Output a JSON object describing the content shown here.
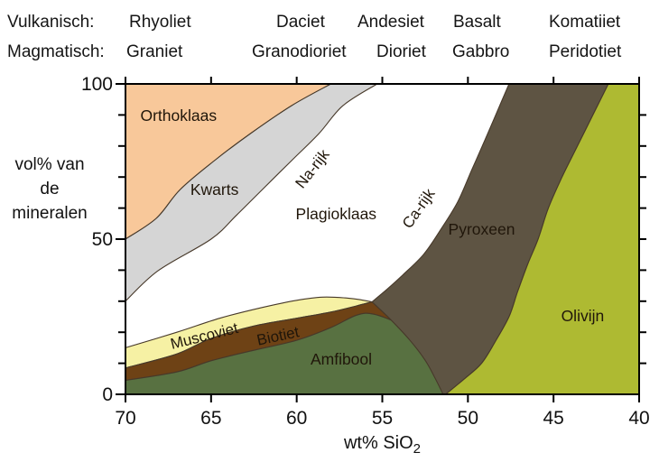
{
  "header": {
    "row1_label": "Vulkanisch:",
    "row1_items": [
      "Rhyoliet",
      "Daciet",
      "Andesiet",
      "Basalt",
      "Komatiiet"
    ],
    "row2_label": "Magmatisch:",
    "row2_items": [
      "Graniet",
      "Granodioriet",
      "Dioriet",
      "Gabbro",
      "Peridotiet"
    ]
  },
  "chart_data": {
    "type": "area",
    "title": "",
    "xlabel": "wt% SiO2",
    "xlabel_main": "wt% SiO",
    "xlabel_sub": "2",
    "ylabel_lines": [
      "vol% van",
      "de",
      "mineralen"
    ],
    "x_axis_reversed": true,
    "x_range": [
      70,
      40
    ],
    "y_range": [
      0,
      100
    ],
    "x_ticks": [
      70,
      65,
      60,
      55,
      50,
      45,
      40
    ],
    "x_tick_labels": [
      "70",
      "65",
      "60",
      "55",
      "50",
      "45",
      "40"
    ],
    "y_major_ticks": [
      100,
      50,
      0
    ],
    "y_tick_labels": [
      "100",
      "50",
      "0"
    ],
    "y_minor_step": 10,
    "boundary_color": "#47392a",
    "axis_color": "#000000",
    "label_color": "#20160a",
    "regions": [
      {
        "name": "Orthoklaas",
        "color": "#f8c89a",
        "segments": [
          {
            "smooth": true,
            "pts": [
              [
                70,
                50
              ],
              [
                68.2,
                56.7
              ],
              [
                66.8,
                66
              ],
              [
                64.8,
                75.3
              ],
              [
                62.7,
                84
              ],
              [
                60.3,
                93
              ],
              [
                58,
                100
              ]
            ]
          },
          {
            "smooth": false,
            "pts": [
              [
                70,
                100
              ]
            ]
          }
        ]
      },
      {
        "name": "Kwarts",
        "color": "#d5d5d5",
        "segments": [
          {
            "smooth": true,
            "pts": [
              [
                70,
                30
              ],
              [
                68.1,
                39.8
              ],
              [
                65,
                50
              ],
              [
                63.5,
                57.8
              ],
              [
                62,
                66
              ],
              [
                60.3,
                75.3
              ],
              [
                58.7,
                84
              ],
              [
                57.3,
                93
              ],
              [
                55.3,
                100
              ]
            ]
          },
          {
            "smooth": false,
            "pts": [
              [
                58,
                100
              ]
            ]
          },
          {
            "smooth": true,
            "pts": [
              [
                60.3,
                93
              ],
              [
                62.7,
                84
              ],
              [
                64.8,
                75.3
              ],
              [
                66.8,
                66
              ],
              [
                68.2,
                56.7
              ],
              [
                70,
                50
              ]
            ]
          }
        ]
      },
      {
        "name": "Muscoviet",
        "color": "#f6f1a4",
        "segments": [
          {
            "smooth": true,
            "pts": [
              [
                70,
                15
              ],
              [
                67,
                20
              ],
              [
                64.5,
                24.5
              ],
              [
                62,
                28
              ],
              [
                60,
                30.3
              ],
              [
                58.5,
                31.3
              ],
              [
                57,
                31
              ],
              [
                56.2,
                30.4
              ],
              [
                55.6,
                29.8
              ]
            ]
          },
          {
            "smooth": true,
            "pts": [
              [
                56.5,
                28.5
              ],
              [
                58,
                26.5
              ],
              [
                60,
                24.5
              ],
              [
                62.5,
                22
              ],
              [
                65,
                18
              ],
              [
                67,
                13
              ],
              [
                70,
                8.5
              ]
            ]
          }
        ]
      },
      {
        "name": "Biotiet",
        "color": "#6e4215",
        "segments": [
          {
            "smooth": true,
            "pts": [
              [
                70,
                8.5
              ],
              [
                67,
                13
              ],
              [
                65,
                18
              ],
              [
                62.5,
                22
              ],
              [
                60,
                24.5
              ],
              [
                58,
                26.5
              ],
              [
                56.5,
                28.5
              ],
              [
                55.6,
                29.8
              ]
            ]
          },
          {
            "smooth": true,
            "pts": [
              [
                54.5,
                24
              ],
              [
                53.4,
                17.5
              ],
              [
                52.5,
                11
              ],
              [
                51.9,
                5
              ],
              [
                51.45,
                0
              ]
            ]
          },
          {
            "smooth": true,
            "pts": [
              [
                51.7,
                4.5
              ],
              [
                52.3,
                11
              ],
              [
                53,
                17.5
              ],
              [
                54,
                22.5
              ],
              [
                55.5,
                25.8
              ],
              [
                56.5,
                25.5
              ],
              [
                58,
                21.5
              ],
              [
                60,
                17.4
              ],
              [
                62.5,
                14.2
              ],
              [
                65,
                10.8
              ],
              [
                67,
                7.2
              ],
              [
                70,
                4.5
              ]
            ]
          }
        ]
      },
      {
        "name": "Amfibool",
        "color": "#587141",
        "segments": [
          {
            "smooth": true,
            "pts": [
              [
                70,
                4.5
              ],
              [
                67,
                7.2
              ],
              [
                65,
                10.8
              ],
              [
                62.5,
                14.2
              ],
              [
                60,
                17.4
              ],
              [
                58,
                21.5
              ],
              [
                56.5,
                25.5
              ],
              [
                55.5,
                25.8
              ],
              [
                54,
                22.5
              ],
              [
                53,
                17.5
              ],
              [
                52.3,
                11
              ],
              [
                51.7,
                4.5
              ],
              [
                51.4,
                0
              ]
            ]
          },
          {
            "smooth": false,
            "pts": [
              [
                70,
                0
              ]
            ]
          }
        ]
      },
      {
        "name": "Pyroxeen",
        "color": "#5e5443",
        "segments": [
          {
            "smooth": true,
            "pts": [
              [
                47.6,
                100
              ],
              [
                48.3,
                91
              ],
              [
                49,
                82
              ],
              [
                49.8,
                72
              ],
              [
                50.6,
                62
              ],
              [
                51.6,
                53
              ],
              [
                52.6,
                45
              ],
              [
                53.8,
                38.5
              ],
              [
                54.8,
                33.5
              ],
              [
                55.6,
                29.8
              ]
            ]
          },
          {
            "smooth": true,
            "pts": [
              [
                54.5,
                24
              ],
              [
                53.4,
                17.5
              ],
              [
                52.5,
                11
              ],
              [
                51.9,
                5
              ],
              [
                51.45,
                0
              ]
            ]
          },
          {
            "smooth": false,
            "pts": [
              [
                51.3,
                0
              ]
            ]
          },
          {
            "smooth": true,
            "pts": [
              [
                50.2,
                5
              ],
              [
                49.2,
                10
              ],
              [
                48.4,
                17
              ],
              [
                47.6,
                25
              ],
              [
                47.1,
                33
              ],
              [
                46.5,
                42
              ],
              [
                45.9,
                50
              ],
              [
                45.3,
                60
              ],
              [
                44.5,
                70
              ],
              [
                43.6,
                80
              ],
              [
                42.7,
                90
              ],
              [
                41.8,
                100
              ]
            ]
          }
        ]
      },
      {
        "name": "Olivijn",
        "color": "#aeba32",
        "segments": [
          {
            "smooth": true,
            "pts": [
              [
                51.3,
                0
              ],
              [
                50.2,
                5
              ],
              [
                49.2,
                10
              ],
              [
                48.4,
                17
              ],
              [
                47.6,
                25
              ],
              [
                47.1,
                33
              ],
              [
                46.5,
                42
              ],
              [
                45.9,
                50
              ],
              [
                45.3,
                60
              ],
              [
                44.5,
                70
              ],
              [
                43.6,
                80
              ],
              [
                42.7,
                90
              ],
              [
                41.8,
                100
              ]
            ]
          },
          {
            "smooth": false,
            "pts": [
              [
                40,
                100
              ],
              [
                40,
                0
              ]
            ]
          }
        ]
      }
    ],
    "region_labels": [
      {
        "text": "Orthoklaas",
        "w": 66.9,
        "v": 89.8,
        "angle": 0,
        "size": 17.5
      },
      {
        "text": "Kwarts",
        "w": 64.8,
        "v": 66.0,
        "angle": 0,
        "size": 17.5
      },
      {
        "text": "Na-rijk",
        "w": 59.1,
        "v": 72.7,
        "angle": -52,
        "size": 17
      },
      {
        "text": "Plagioklaas",
        "w": 57.7,
        "v": 58.1,
        "angle": 0,
        "size": 17.5
      },
      {
        "text": "Ca-rijk",
        "w": 52.9,
        "v": 59.9,
        "angle": -55,
        "size": 17
      },
      {
        "text": "Pyroxeen",
        "w": 49.2,
        "v": 53.2,
        "angle": 0,
        "size": 17.5
      },
      {
        "text": "Olivijn",
        "w": 43.3,
        "v": 25.3,
        "angle": 0,
        "size": 17.5
      },
      {
        "text": "Muscoviet",
        "w": 65.4,
        "v": 18.9,
        "angle": -14,
        "size": 17
      },
      {
        "text": "Biotiet",
        "w": 61.1,
        "v": 18.9,
        "angle": -12,
        "size": 17
      },
      {
        "text": "Amfibool",
        "w": 57.4,
        "v": 11.3,
        "angle": 0,
        "size": 17.5
      }
    ]
  }
}
